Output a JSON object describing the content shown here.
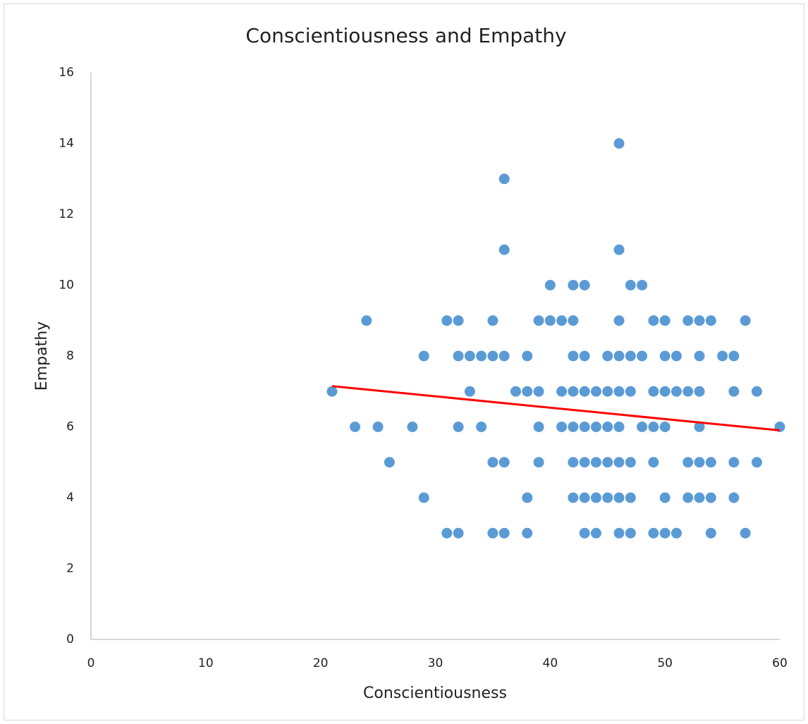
{
  "chart_data": {
    "type": "scatter",
    "title": "Conscientiousness and Empathy",
    "x_label": "Conscientiousness",
    "y_label": "Empathy",
    "xlim": [
      0,
      60
    ],
    "ylim": [
      0,
      16
    ],
    "xticks": [
      0,
      10,
      20,
      30,
      40,
      50,
      60
    ],
    "yticks": [
      0,
      2,
      4,
      6,
      8,
      10,
      12,
      14,
      16
    ],
    "grid": false,
    "color": "#5b9bd5",
    "x": [
      46,
      36,
      36,
      46,
      40,
      42,
      43,
      47,
      48,
      24,
      31,
      32,
      35,
      39,
      40,
      41,
      42,
      46,
      49,
      50,
      52,
      53,
      54,
      57,
      29,
      32,
      33,
      34,
      35,
      36,
      38,
      42,
      43,
      45,
      46,
      47,
      48,
      50,
      51,
      53,
      55,
      56,
      21,
      33,
      37,
      38,
      39,
      41,
      42,
      43,
      44,
      45,
      46,
      47,
      49,
      50,
      51,
      52,
      53,
      56,
      58,
      23,
      25,
      28,
      32,
      34,
      39,
      41,
      42,
      43,
      44,
      45,
      46,
      48,
      49,
      50,
      53,
      60,
      26,
      35,
      36,
      39,
      42,
      43,
      44,
      45,
      46,
      47,
      49,
      52,
      53,
      54,
      56,
      58,
      29,
      38,
      42,
      43,
      44,
      45,
      46,
      47,
      50,
      52,
      53,
      54,
      56,
      31,
      32,
      35,
      36,
      38,
      43,
      44,
      46,
      47,
      49,
      50,
      51,
      54,
      57
    ],
    "values": [
      14,
      13,
      11,
      11,
      10,
      10,
      10,
      10,
      10,
      9,
      9,
      9,
      9,
      9,
      9,
      9,
      9,
      9,
      9,
      9,
      9,
      9,
      9,
      9,
      8,
      8,
      8,
      8,
      8,
      8,
      8,
      8,
      8,
      8,
      8,
      8,
      8,
      8,
      8,
      8,
      8,
      8,
      7,
      7,
      7,
      7,
      7,
      7,
      7,
      7,
      7,
      7,
      7,
      7,
      7,
      7,
      7,
      7,
      7,
      7,
      7,
      6,
      6,
      6,
      6,
      6,
      6,
      6,
      6,
      6,
      6,
      6,
      6,
      6,
      6,
      6,
      6,
      6,
      5,
      5,
      5,
      5,
      5,
      5,
      5,
      5,
      5,
      5,
      5,
      5,
      5,
      5,
      5,
      5,
      4,
      4,
      4,
      4,
      4,
      4,
      4,
      4,
      4,
      4,
      4,
      4,
      4,
      3,
      3,
      3,
      3,
      3,
      3,
      3,
      3,
      3,
      3,
      3,
      3,
      3,
      3
    ],
    "trendline": {
      "x": [
        21,
        60
      ],
      "values": [
        7.15,
        5.9
      ],
      "color": "#ff0000"
    }
  }
}
